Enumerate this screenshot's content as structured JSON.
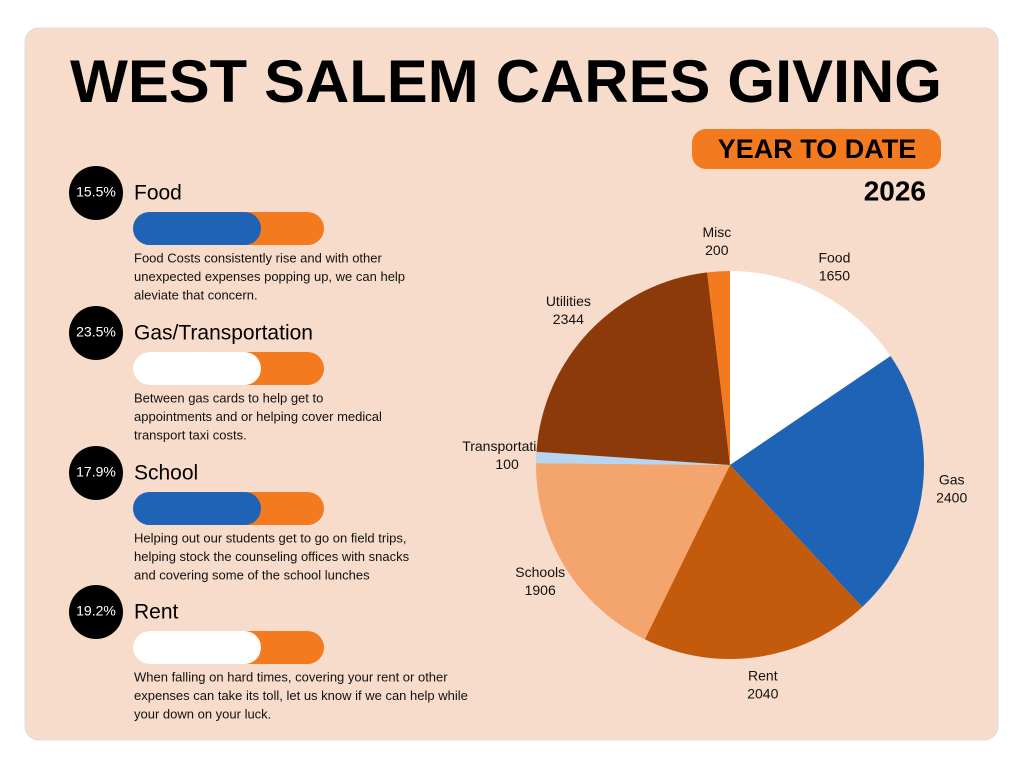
{
  "header": {
    "title": "WEST SALEM CARES GIVING",
    "badge": "YEAR TO DATE",
    "year": "2026"
  },
  "items": [
    {
      "percent": "15.5%",
      "title": "Food",
      "lines": [
        "Food Costs consistently rise and with other",
        "unexpected expenses popping up, we can help",
        "aleviate that concern."
      ]
    },
    {
      "percent": "23.5%",
      "title": "Gas/Transportation",
      "lines": [
        "Between gas cards to help get to",
        "appointments and or helping cover medical",
        "transport taxi costs."
      ]
    },
    {
      "percent": "17.9%",
      "title": "School",
      "lines": [
        "Helping out our students get to go on field trips,",
        "helping stock the counseling offices with snacks",
        "and covering some of the school lunches"
      ]
    },
    {
      "percent": "19.2%",
      "title": "Rent",
      "lines": [
        "When falling on hard times, covering your rent or other",
        "expenses can take its toll, let us know if we can help while",
        "your down on your luck."
      ]
    }
  ],
  "chart_data": {
    "type": "pie",
    "categories": [
      "Food",
      "Gas",
      "Rent",
      "Schools",
      "Transportation",
      "Utilities",
      "Misc"
    ],
    "values": [
      1650,
      2400,
      2040,
      1906,
      100,
      2344,
      200
    ],
    "colors": [
      "#ffffff",
      "#1f63b7",
      "#c45a0b",
      "#f4a56d",
      "#b6d5f2",
      "#8c3a09",
      "#f47a20"
    ]
  }
}
